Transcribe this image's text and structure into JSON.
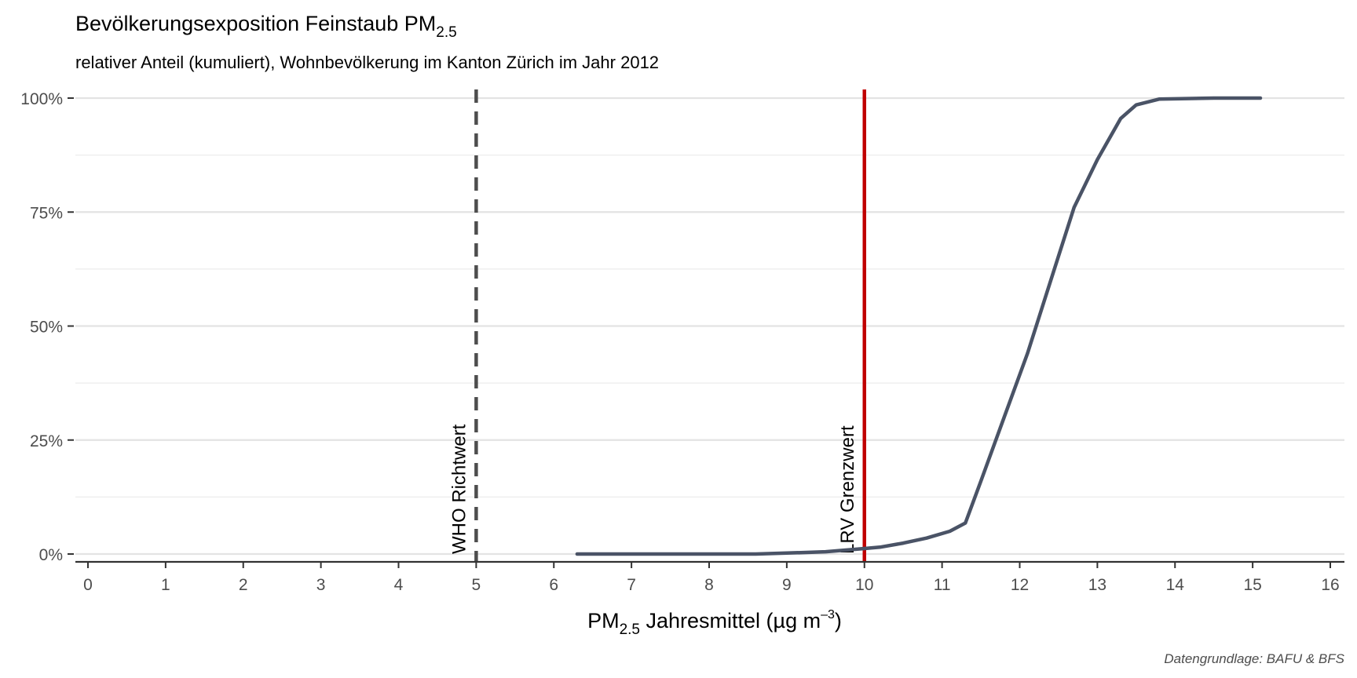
{
  "chart_data": {
    "type": "line",
    "title": {
      "main": "Bevölkerungsexposition Feinstaub PM",
      "subscript": "2.5"
    },
    "subtitle": "relativer Anteil (kumuliert), Wohnbevölkerung im Kanton Zürich im Jahr 2012",
    "xlabel": {
      "prefix": "PM",
      "subscript": "2.5",
      "middle": " Jahresmittel (µg m",
      "superscript": "–3",
      "suffix": ")"
    },
    "ylabel": "",
    "xlim": [
      0,
      16
    ],
    "ylim": [
      0,
      1
    ],
    "x_ticks": [
      "0",
      "1",
      "2",
      "3",
      "4",
      "5",
      "6",
      "7",
      "8",
      "9",
      "10",
      "11",
      "12",
      "13",
      "14",
      "15",
      "16"
    ],
    "y_ticks": [
      {
        "value": 0,
        "label": "0%"
      },
      {
        "value": 0.25,
        "label": "25%"
      },
      {
        "value": 0.5,
        "label": "50%"
      },
      {
        "value": 0.75,
        "label": "75%"
      },
      {
        "value": 1,
        "label": "100%"
      }
    ],
    "y_minor_ticks": [
      0.125,
      0.375,
      0.625,
      0.875
    ],
    "grid": "horizontal",
    "series": [
      {
        "color": "#4a5366",
        "points": [
          [
            6.3,
            0.0
          ],
          [
            7.0,
            0.0
          ],
          [
            8.0,
            0.0
          ],
          [
            8.6,
            0.0
          ],
          [
            9.0,
            0.002
          ],
          [
            9.5,
            0.005
          ],
          [
            10.0,
            0.012
          ],
          [
            10.2,
            0.015
          ],
          [
            10.5,
            0.024
          ],
          [
            10.8,
            0.035
          ],
          [
            11.1,
            0.05
          ],
          [
            11.3,
            0.068
          ],
          [
            11.5,
            0.16
          ],
          [
            11.8,
            0.3
          ],
          [
            12.1,
            0.44
          ],
          [
            12.4,
            0.6
          ],
          [
            12.7,
            0.76
          ],
          [
            13.0,
            0.865
          ],
          [
            13.3,
            0.955
          ],
          [
            13.5,
            0.985
          ],
          [
            13.8,
            0.998
          ],
          [
            14.5,
            1.0
          ],
          [
            15.1,
            1.0
          ]
        ]
      }
    ],
    "reference_lines": [
      {
        "x": 5,
        "label": "WHO Richtwert",
        "style": "dashed",
        "color": "#4d4d4d"
      },
      {
        "x": 10,
        "label": "LRV Grenzwert",
        "style": "solid",
        "color": "#c00000"
      }
    ],
    "caption": "Datengrundlage: BAFU & BFS"
  }
}
